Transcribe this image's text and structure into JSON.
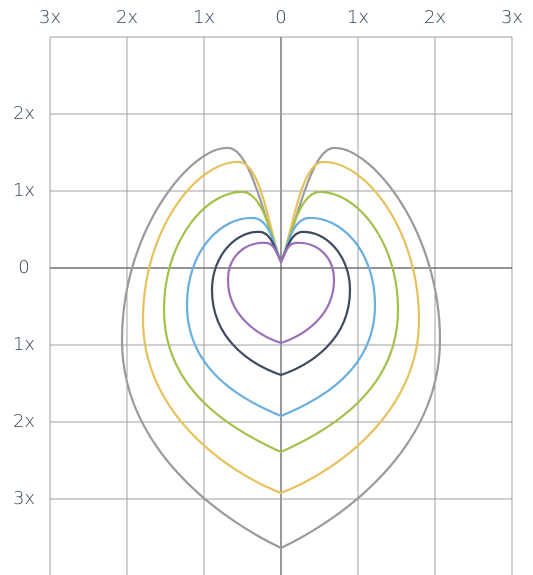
{
  "top_axis_labels": [
    "3x",
    "2x",
    "1x",
    "0",
    "1x",
    "2x",
    "3x"
  ],
  "left_axis_labels": [
    "2x",
    "1x",
    "0",
    "1x",
    "2x",
    "3x"
  ]
}
